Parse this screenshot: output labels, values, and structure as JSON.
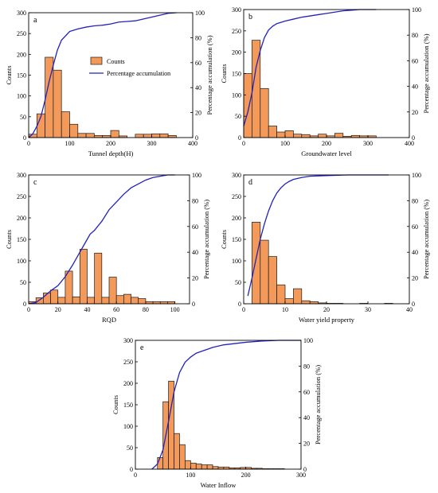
{
  "figure": {
    "colors": {
      "bar_fill": "#f39a5a",
      "bar_stroke": "#1a1a1a",
      "line": "#2222bb",
      "axis": "#000000"
    }
  },
  "chart_data": [
    {
      "panel": "a",
      "type": "bar",
      "xlabel": "Tunnel depth(H)",
      "ylabel": "Counts",
      "y2label": "Percentage accumulation (%)",
      "xlim": [
        0,
        400
      ],
      "ylim": [
        0,
        300
      ],
      "y2lim": [
        0,
        100
      ],
      "xticks": [
        0,
        100,
        200,
        300,
        400
      ],
      "yticks": [
        0,
        50,
        100,
        150,
        200,
        250,
        300
      ],
      "y2ticks": [
        0,
        20,
        40,
        60,
        80,
        100
      ],
      "legend": {
        "position": "center-right",
        "entries": [
          "Counts",
          "Percentage accumulation"
        ]
      },
      "series": [
        {
          "name": "Counts",
          "type": "bar",
          "bin_edges": [
            0,
            20,
            40,
            60,
            80,
            100,
            120,
            140,
            160,
            180,
            200,
            220,
            240,
            260,
            280,
            300,
            320,
            340,
            360
          ],
          "values": [
            8,
            57,
            193,
            162,
            62,
            32,
            10,
            10,
            5,
            5,
            17,
            4,
            0,
            8,
            8,
            9,
            9,
            5
          ]
        },
        {
          "name": "Percentage accumulation",
          "type": "line",
          "x": [
            0,
            10,
            20,
            30,
            40,
            50,
            60,
            70,
            80,
            100,
            120,
            140,
            160,
            180,
            200,
            220,
            240,
            260,
            280,
            300,
            320,
            340,
            360
          ],
          "y": [
            0,
            3,
            9,
            17,
            30,
            45,
            58,
            70,
            78,
            85,
            87,
            88.5,
            89.5,
            90,
            91,
            92.5,
            93,
            93.5,
            95,
            96.5,
            98,
            99.5,
            100
          ]
        }
      ]
    },
    {
      "panel": "b",
      "type": "bar",
      "xlabel": "Groundwater level",
      "ylabel": "Counts",
      "y2label": "Percentage accumulation (%)",
      "xlim": [
        0,
        400
      ],
      "ylim": [
        0,
        300
      ],
      "y2lim": [
        0,
        100
      ],
      "xticks": [
        0,
        100,
        200,
        300,
        400
      ],
      "yticks": [
        0,
        50,
        100,
        150,
        200,
        250,
        300
      ],
      "y2ticks": [
        0,
        20,
        40,
        60,
        80,
        100
      ],
      "series": [
        {
          "name": "Counts",
          "type": "bar",
          "bin_edges": [
            0,
            20,
            40,
            60,
            80,
            100,
            120,
            140,
            160,
            180,
            200,
            220,
            240,
            260,
            280,
            300,
            320
          ],
          "values": [
            150,
            228,
            115,
            27,
            13,
            16,
            8,
            7,
            4,
            8,
            4,
            10,
            3,
            5,
            4,
            4
          ]
        },
        {
          "name": "Percentage accumulation",
          "type": "line",
          "x": [
            0,
            10,
            20,
            30,
            40,
            50,
            60,
            70,
            80,
            100,
            120,
            140,
            160,
            180,
            200,
            220,
            240,
            260,
            280,
            300,
            320
          ],
          "y": [
            9,
            20,
            35,
            55,
            68,
            78,
            84,
            87,
            89,
            91,
            92.5,
            94,
            95,
            96,
            97,
            98,
            99,
            99.5,
            100,
            100,
            100
          ]
        }
      ]
    },
    {
      "panel": "c",
      "type": "bar",
      "xlabel": "RQD",
      "ylabel": "Counts",
      "y2label": "Percentage accumulation (%)",
      "xlim": [
        0,
        110
      ],
      "ylim": [
        0,
        300
      ],
      "y2lim": [
        0,
        100
      ],
      "xticks": [
        0,
        20,
        40,
        60,
        80,
        100
      ],
      "yticks": [
        0,
        50,
        100,
        150,
        200,
        250,
        300
      ],
      "y2ticks": [
        0,
        20,
        40,
        60,
        80,
        100
      ],
      "series": [
        {
          "name": "Counts",
          "type": "bar",
          "bin_edges": [
            0,
            5,
            10,
            15,
            20,
            25,
            30,
            35,
            40,
            45,
            50,
            55,
            60,
            65,
            70,
            75,
            80,
            85,
            90,
            95,
            100
          ],
          "values": [
            5,
            14,
            25,
            32,
            15,
            76,
            16,
            127,
            15,
            118,
            15,
            62,
            19,
            22,
            15,
            12,
            5,
            5,
            5,
            5
          ]
        },
        {
          "name": "Percentage accumulation",
          "type": "line",
          "x": [
            0,
            5,
            10,
            15,
            20,
            25,
            30,
            35,
            40,
            42,
            45,
            50,
            55,
            60,
            65,
            70,
            75,
            80,
            85,
            90,
            95,
            100
          ],
          "y": [
            0,
            1,
            5,
            10,
            14,
            21,
            30,
            40,
            50,
            54,
            57,
            64,
            73,
            79,
            85,
            90,
            93,
            96,
            98,
            99,
            100,
            100
          ]
        }
      ]
    },
    {
      "panel": "d",
      "type": "bar",
      "xlabel": "Water yield property",
      "ylabel": "Counts",
      "y2label": "Percentage accumulation (%)",
      "xlim": [
        0,
        40
      ],
      "ylim": [
        0,
        300
      ],
      "y2lim": [
        0,
        100
      ],
      "xticks": [
        0,
        10,
        20,
        30,
        40
      ],
      "yticks": [
        0,
        50,
        100,
        150,
        200,
        250,
        300
      ],
      "y2ticks": [
        0,
        20,
        40,
        60,
        80,
        100
      ],
      "series": [
        {
          "name": "Counts",
          "type": "bar",
          "bin_edges": [
            2,
            4,
            6,
            8,
            10,
            12,
            14,
            16,
            18,
            20,
            22,
            24,
            26,
            28,
            30,
            32,
            34,
            36
          ],
          "values": [
            190,
            148,
            110,
            44,
            12,
            35,
            7,
            5,
            2,
            1,
            1,
            0,
            0,
            1,
            0,
            0,
            1
          ]
        },
        {
          "name": "Percentage accumulation",
          "type": "line",
          "x": [
            1,
            2,
            3,
            4,
            5,
            6,
            7,
            8,
            9,
            10,
            11,
            12,
            14,
            16,
            20,
            25,
            30,
            35
          ],
          "y": [
            6,
            20,
            35,
            50,
            62,
            72,
            80,
            86,
            90,
            93,
            95,
            96.5,
            98,
            99,
            99.5,
            100,
            100,
            100
          ]
        }
      ]
    },
    {
      "panel": "e",
      "type": "bar",
      "xlabel": "Water Inflow",
      "ylabel": "Counts",
      "y2label": "Percentage accumulation (%)",
      "xlim": [
        0,
        300
      ],
      "ylim": [
        0,
        300
      ],
      "y2lim": [
        0,
        100
      ],
      "xticks": [
        0,
        100,
        200,
        300
      ],
      "yticks": [
        0,
        50,
        100,
        150,
        200,
        250,
        300
      ],
      "y2ticks": [
        0,
        20,
        40,
        60,
        80,
        100
      ],
      "series": [
        {
          "name": "Counts",
          "type": "bar",
          "bin_edges": [
            40,
            50,
            60,
            70,
            80,
            90,
            100,
            110,
            120,
            130,
            140,
            150,
            160,
            170,
            180,
            190,
            200,
            210,
            220,
            230,
            240,
            250,
            260,
            270
          ],
          "values": [
            27,
            157,
            205,
            83,
            57,
            20,
            14,
            12,
            10,
            10,
            6,
            5,
            5,
            3,
            3,
            4,
            4,
            2,
            2,
            1,
            1,
            1,
            1
          ]
        },
        {
          "name": "Percentage accumulation",
          "type": "line",
          "x": [
            30,
            40,
            50,
            60,
            70,
            80,
            90,
            100,
            110,
            120,
            130,
            140,
            160,
            180,
            200,
            230,
            260,
            300
          ],
          "y": [
            0,
            4,
            15,
            37,
            60,
            75,
            83,
            87,
            90,
            91.5,
            93,
            94.5,
            96.5,
            97.5,
            98.5,
            99.5,
            100,
            100
          ]
        }
      ]
    }
  ]
}
